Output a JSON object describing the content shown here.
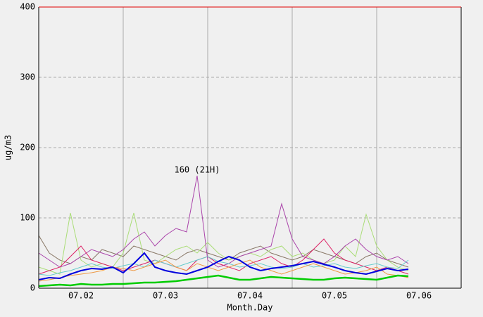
{
  "chart_data": {
    "type": "line",
    "xlabel": "Month.Day",
    "ylabel": "ug/m3",
    "xlim": [
      0,
      120
    ],
    "ylim": [
      0,
      400
    ],
    "xticks": [
      {
        "value": 12,
        "label": "07.02"
      },
      {
        "value": 36,
        "label": "07.03"
      },
      {
        "value": 60,
        "label": "07.04"
      },
      {
        "value": 84,
        "label": "07.05"
      },
      {
        "value": 108,
        "label": "07.06"
      }
    ],
    "xgrid": [
      24,
      48,
      72,
      96
    ],
    "yticks": [
      0,
      100,
      200,
      300,
      400
    ],
    "grid": true,
    "annotations": [
      {
        "text": "160 (21H)",
        "x": 45,
        "y": 160
      }
    ],
    "x": [
      0,
      3,
      6,
      9,
      12,
      15,
      18,
      21,
      24,
      27,
      30,
      33,
      36,
      39,
      42,
      45,
      48,
      51,
      54,
      57,
      60,
      63,
      66,
      69,
      72,
      75,
      78,
      81,
      84,
      87,
      90,
      93,
      96,
      99,
      102,
      105
    ],
    "series": [
      {
        "color": "#887766",
        "width": 1,
        "values": [
          75,
          50,
          40,
          35,
          45,
          40,
          55,
          50,
          45,
          60,
          55,
          50,
          45,
          40,
          50,
          55,
          50,
          45,
          40,
          50,
          55,
          60,
          50,
          45,
          40,
          45,
          55,
          50,
          45,
          40,
          35,
          45,
          50,
          40,
          35,
          30
        ]
      },
      {
        "color": "#aadd77",
        "width": 1,
        "values": [
          30,
          25,
          20,
          107,
          40,
          30,
          35,
          30,
          50,
          107,
          40,
          35,
          45,
          55,
          60,
          50,
          65,
          50,
          40,
          45,
          50,
          45,
          55,
          60,
          45,
          50,
          40,
          35,
          40,
          60,
          45,
          105,
          60,
          40,
          30,
          25
        ]
      },
      {
        "color": "#aa44aa",
        "width": 1,
        "values": [
          50,
          40,
          30,
          35,
          45,
          55,
          50,
          45,
          55,
          70,
          80,
          60,
          75,
          85,
          80,
          160,
          40,
          30,
          35,
          45,
          50,
          55,
          60,
          120,
          70,
          45,
          40,
          35,
          45,
          60,
          70,
          55,
          45,
          40,
          45,
          35
        ]
      },
      {
        "color": "#dd2266",
        "width": 1,
        "values": [
          20,
          25,
          30,
          45,
          60,
          40,
          35,
          30,
          25,
          30,
          35,
          40,
          35,
          30,
          25,
          40,
          45,
          35,
          30,
          25,
          35,
          40,
          45,
          35,
          30,
          40,
          55,
          70,
          50,
          40,
          35,
          30,
          25,
          30,
          25,
          20
        ]
      },
      {
        "color": "#66cccc",
        "width": 1,
        "values": [
          20,
          18,
          22,
          25,
          30,
          35,
          30,
          28,
          32,
          35,
          30,
          40,
          35,
          30,
          35,
          40,
          45,
          38,
          35,
          30,
          32,
          35,
          30,
          28,
          30,
          35,
          30,
          32,
          35,
          30,
          28,
          32,
          35,
          30,
          28,
          40
        ]
      },
      {
        "color": "#ee9944",
        "width": 1,
        "values": [
          10,
          12,
          15,
          18,
          20,
          22,
          25,
          30,
          28,
          25,
          30,
          35,
          40,
          30,
          25,
          35,
          30,
          25,
          30,
          35,
          40,
          30,
          25,
          20,
          25,
          30,
          35,
          30,
          25,
          20,
          22,
          25,
          30,
          20,
          18,
          15
        ]
      },
      {
        "color": "#00cc00",
        "width": 2.5,
        "values": [
          3,
          4,
          5,
          4,
          6,
          5,
          5,
          6,
          6,
          7,
          8,
          8,
          9,
          10,
          12,
          14,
          16,
          18,
          15,
          12,
          12,
          14,
          16,
          15,
          14,
          13,
          12,
          12,
          14,
          15,
          14,
          13,
          12,
          15,
          18,
          17
        ]
      },
      {
        "color": "#0000dd",
        "width": 2,
        "values": [
          12,
          15,
          14,
          20,
          25,
          28,
          27,
          30,
          22,
          35,
          50,
          30,
          25,
          22,
          20,
          25,
          30,
          38,
          45,
          40,
          30,
          25,
          28,
          30,
          32,
          35,
          38,
          34,
          30,
          25,
          22,
          20,
          24,
          28,
          25,
          27
        ]
      }
    ]
  }
}
